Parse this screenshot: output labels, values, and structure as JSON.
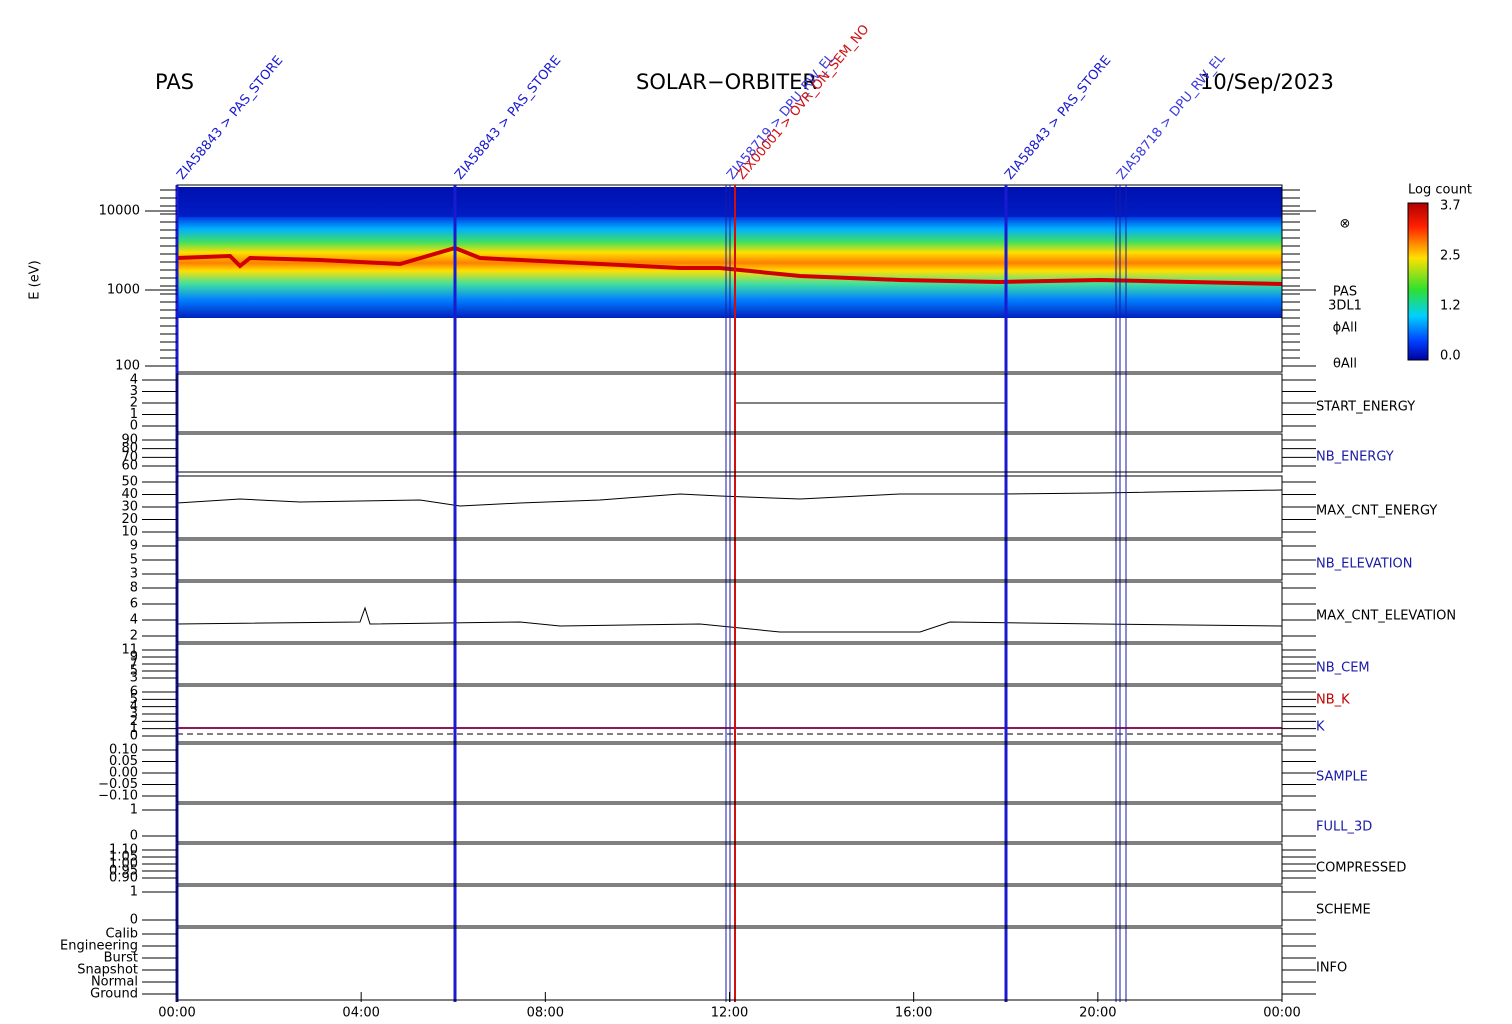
{
  "header": {
    "instrument": "PAS",
    "mission": "SOLAR−ORBITER",
    "date": "10/Sep/2023"
  },
  "spectrogram": {
    "axis_label": "E (eV)",
    "ticks": [
      "10000",
      "1000",
      "100"
    ],
    "side_labels": [
      "PAS",
      "3DL1",
      "ϕAll",
      "θAll"
    ],
    "symbol": "⊗"
  },
  "colorbar": {
    "title": "Log count",
    "ticks": [
      "3.7",
      "2.5",
      "1.2",
      "0.0"
    ]
  },
  "panels": [
    {
      "labels": [
        "START_ENERGY"
      ],
      "colors": [
        "#000"
      ],
      "ticks": [
        "4",
        "3",
        "2",
        "1",
        "0"
      ]
    },
    {
      "labels": [
        "NB_ENERGY"
      ],
      "colors": [
        "#1a1aa8"
      ],
      "ticks": [
        "90",
        "80",
        "70",
        "60"
      ]
    },
    {
      "labels": [
        "MAX_CNT_ENERGY"
      ],
      "colors": [
        "#000"
      ],
      "ticks": [
        "50",
        "40",
        "30",
        "20",
        "10"
      ]
    },
    {
      "labels": [
        "NB_ELEVATION"
      ],
      "colors": [
        "#1a1aa8"
      ],
      "ticks": [
        "9",
        "5",
        "3"
      ]
    },
    {
      "labels": [
        "MAX_CNT_ELEVATION"
      ],
      "colors": [
        "#000"
      ],
      "ticks": [
        "8",
        "6",
        "4",
        "2"
      ]
    },
    {
      "labels": [
        "NB_CEM"
      ],
      "colors": [
        "#1a1aa8"
      ],
      "ticks": [
        "11",
        "9",
        "7",
        "5",
        "3"
      ]
    },
    {
      "labels": [
        "NB_K",
        "K"
      ],
      "colors": [
        "#c00000",
        "#1a1aa8"
      ],
      "ticks": [
        "6",
        "5",
        "4",
        "3",
        "2",
        "1",
        "0"
      ]
    },
    {
      "labels": [
        "SAMPLE"
      ],
      "colors": [
        "#1a1aa8"
      ],
      "ticks": [
        "0.10",
        "0.05",
        "0.00",
        "−0.05",
        "−0.10"
      ]
    },
    {
      "labels": [
        "FULL_3D"
      ],
      "colors": [
        "#1a1aa8"
      ],
      "ticks": [
        "1",
        "0"
      ]
    },
    {
      "labels": [
        "COMPRESSED"
      ],
      "colors": [
        "#000"
      ],
      "ticks": [
        "1.10",
        "1.05",
        "1.00",
        "0.95",
        "0.90"
      ]
    },
    {
      "labels": [
        "SCHEME"
      ],
      "colors": [
        "#000"
      ],
      "ticks": [
        "1",
        "0"
      ]
    },
    {
      "labels": [
        "INFO"
      ],
      "colors": [
        "#000"
      ],
      "ticks": [
        "Calib",
        "Engineering",
        "Burst",
        "Snapshot",
        "Normal",
        "Ground"
      ]
    }
  ],
  "time_axis": {
    "labels": [
      "00:00",
      "04:00",
      "08:00",
      "12:00",
      "16:00",
      "20:00",
      "00:00"
    ]
  },
  "annotations": [
    {
      "text": "ZIA58843 > PAS_STORE",
      "color": "#1a1ad0"
    },
    {
      "text": "ZIA58843 > PAS_STORE",
      "color": "#1a1ad0"
    },
    {
      "text": "ZIA58719 > DPU_RW_EL",
      "color": "#3a3ae0"
    },
    {
      "text": "ZIX00001 > OVR_ON_SEM_NO",
      "color": "#d01010"
    },
    {
      "text": "ZIA58843 > PAS_STORE",
      "color": "#1a1ad0"
    },
    {
      "text": "ZIA58718 > DPU_RW_EL",
      "color": "#3a3ae0"
    }
  ]
}
